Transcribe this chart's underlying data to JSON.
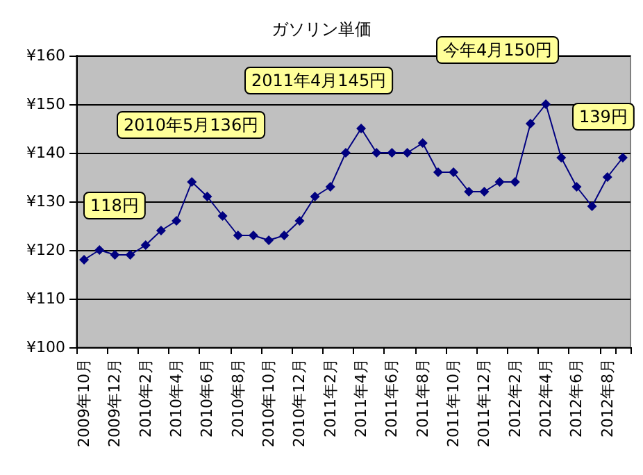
{
  "chart_data": {
    "type": "line",
    "title": "ガソリン単価",
    "categories": [
      "2009年10月",
      null,
      "2009年12月",
      null,
      "2010年2月",
      null,
      "2010年4月",
      null,
      "2010年6月",
      null,
      "2010年8月",
      null,
      "2010年10月",
      null,
      "2010年12月",
      null,
      "2011年2月",
      null,
      "2011年4月",
      null,
      "2011年6月",
      null,
      "2011年8月",
      null,
      "2011年10月",
      null,
      "2011年12月",
      null,
      "2012年2月",
      null,
      "2012年4月",
      null,
      "2012年6月",
      null,
      "2012年8月",
      null
    ],
    "series": [
      {
        "color": "#000080",
        "values": [
          118,
          120,
          119,
          119,
          121,
          124,
          126,
          134,
          131,
          127,
          123,
          123,
          122,
          123,
          126,
          131,
          133,
          140,
          145,
          140,
          140,
          140,
          142,
          136,
          136,
          132,
          132,
          134,
          134,
          146,
          150,
          139,
          133,
          129,
          135,
          139
        ]
      }
    ],
    "ylim": [
      100,
      160
    ],
    "yticks": [
      {
        "value": 100,
        "label": "¥100"
      },
      {
        "value": 110,
        "label": "¥110"
      },
      {
        "value": 120,
        "label": "¥120"
      },
      {
        "value": 130,
        "label": "¥130"
      },
      {
        "value": 140,
        "label": "¥140"
      },
      {
        "value": 150,
        "label": "¥150"
      },
      {
        "value": 160,
        "label": "¥160"
      }
    ],
    "grid": "y",
    "marker": "diamond",
    "line_style": "solid",
    "annotations": [
      "118円",
      "2010年5月136円",
      "2011年4月145円",
      "今年4月150円",
      "139円"
    ]
  }
}
